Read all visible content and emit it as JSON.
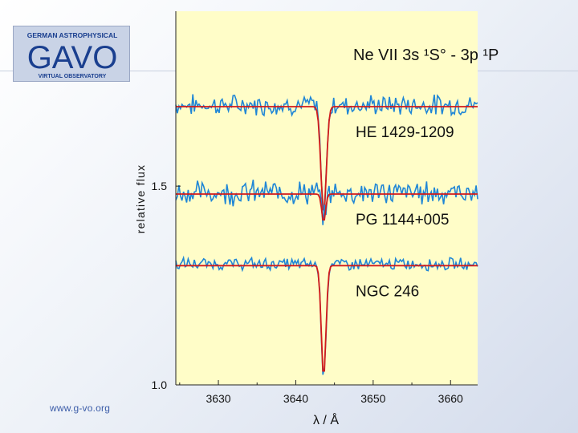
{
  "logo": {
    "line1": "GERMAN ASTROPHYSICAL",
    "main": "GAVO",
    "line3": "VIRTUAL OBSERVATORY"
  },
  "footer": {
    "url": "www.g-vo.org"
  },
  "colors": {
    "panel": "#fffdc8",
    "observed": "#1f86d6",
    "model": "#d21a1a",
    "axis": "#222222"
  },
  "chart_data": {
    "type": "line",
    "title": "Ne VII   3s ¹S° - 3p ¹P",
    "xlabel": "λ / Å",
    "ylabel": "relative flux",
    "xlim": [
      3624.5,
      3663.5
    ],
    "ylim": [
      1.0,
      1.94
    ],
    "x_ticks": [
      3630,
      3640,
      3650,
      3660
    ],
    "y_ticks": [
      1.0,
      1.5
    ],
    "line_center": 3643.6,
    "series": [
      {
        "name": "HE 1429-1209",
        "offset": 1.7,
        "depth": 0.27,
        "width": 0.35,
        "noise": 0.025
      },
      {
        "name": "PG 1144+005",
        "offset": 1.48,
        "depth": 0.07,
        "width": 0.25,
        "noise": 0.03
      },
      {
        "name": "NGC 246",
        "offset": 1.3,
        "depth": 0.28,
        "width": 0.3,
        "noise": 0.015
      }
    ]
  }
}
